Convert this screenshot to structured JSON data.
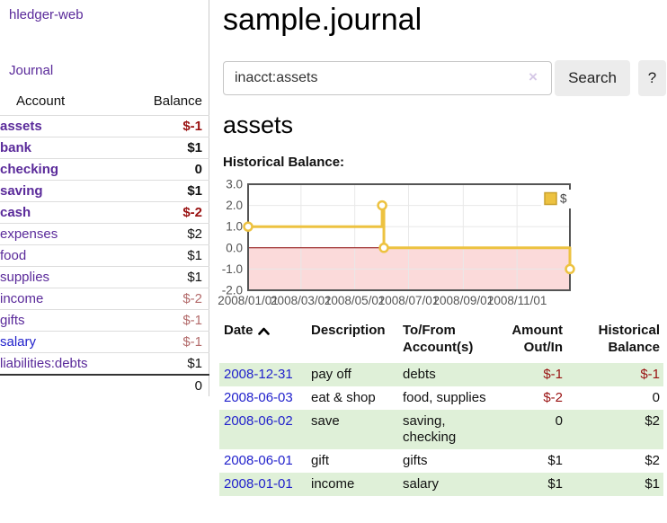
{
  "colors": {
    "purple": "#5a2a9a",
    "blue": "#2222cc",
    "neg_strong": "#991111",
    "neg_soft": "#b36b6b",
    "stripe_green": "#dff0d8",
    "row_line": "#dddddd",
    "divider": "#cccccc",
    "input_border": "#c6c6c6",
    "button_bg": "#ececec",
    "clear_x": "#d5c8e6"
  },
  "app": {
    "brand": "hledger-web",
    "nav_journal": "Journal"
  },
  "sidebar": {
    "header": {
      "account": "Account",
      "balance": "Balance"
    },
    "rows": [
      {
        "name": "assets",
        "depth": 1,
        "bold": true,
        "link": "purple",
        "balance": "$-1",
        "balance_style": "neg-strong"
      },
      {
        "name": "bank",
        "depth": 2,
        "bold": true,
        "link": "purple",
        "balance": "$1",
        "balance_style": "pos"
      },
      {
        "name": "checking",
        "depth": 3,
        "bold": true,
        "link": "purple",
        "balance": "0",
        "balance_style": "pos"
      },
      {
        "name": "saving",
        "depth": 3,
        "bold": true,
        "link": "purple",
        "balance": "$1",
        "balance_style": "pos"
      },
      {
        "name": "cash",
        "depth": 2,
        "bold": true,
        "link": "purple",
        "balance": "$-2",
        "balance_style": "neg-strong"
      },
      {
        "name": "expenses",
        "depth": 1,
        "bold": false,
        "link": "purple",
        "balance": "$2",
        "balance_style": "pos"
      },
      {
        "name": "food",
        "depth": 2,
        "bold": false,
        "link": "purple",
        "balance": "$1",
        "balance_style": "pos"
      },
      {
        "name": "supplies",
        "depth": 2,
        "bold": false,
        "link": "purple",
        "balance": "$1",
        "balance_style": "pos"
      },
      {
        "name": "income",
        "depth": 1,
        "bold": false,
        "link": "purple",
        "balance": "$-2",
        "balance_style": "neg-soft"
      },
      {
        "name": "gifts",
        "depth": 2,
        "bold": false,
        "link": "purple",
        "balance": "$-1",
        "balance_style": "neg-soft"
      },
      {
        "name": "salary",
        "depth": 2,
        "bold": false,
        "link": "blue",
        "balance": "$-1",
        "balance_style": "neg-soft"
      },
      {
        "name": "liabilities:debts",
        "depth": 1,
        "bold": false,
        "link": "purple",
        "balance": "$1",
        "balance_style": "pos"
      }
    ],
    "total": "0"
  },
  "header": {
    "title": "sample.journal"
  },
  "search": {
    "value": "inacct:assets",
    "clear_icon": "×",
    "button": "Search",
    "help_button": "?"
  },
  "account_page": {
    "heading": "assets",
    "chart_label": "Historical Balance:"
  },
  "chart_data": {
    "type": "line",
    "style": "step",
    "title": "Historical Balance:",
    "series": [
      {
        "name": "$",
        "color": "#edc240",
        "points": [
          [
            "2008-01-01",
            1
          ],
          [
            "2008-06-01",
            2
          ],
          [
            "2008-06-03",
            0
          ],
          [
            "2008-12-31",
            -1
          ]
        ]
      }
    ],
    "xlim": [
      "2008-01-01",
      "2008-12-31"
    ],
    "ylim": [
      -2,
      3
    ],
    "yticks": [
      {
        "value": 3,
        "label": "3.0"
      },
      {
        "value": 2,
        "label": "2.0"
      },
      {
        "value": 1,
        "label": "1.0"
      },
      {
        "value": 0,
        "label": "0.0"
      },
      {
        "value": -1,
        "label": "-1.0"
      },
      {
        "value": -2,
        "label": "-2.0"
      }
    ],
    "xticks": [
      {
        "date": "2008-01-01",
        "label": "2008/01/01"
      },
      {
        "date": "2008-03-01",
        "label": "2008/03/01"
      },
      {
        "date": "2008-05-01",
        "label": "2008/05/01"
      },
      {
        "date": "2008-07-01",
        "label": "2008/07/01"
      },
      {
        "date": "2008-09-01",
        "label": "2008/09/01"
      },
      {
        "date": "2008-11-01",
        "label": "2008/11/01"
      }
    ],
    "legend": {
      "label": "$",
      "position": "top-right"
    },
    "grid": true,
    "grid_color": "#e8e8e8",
    "border_color": "#545454",
    "tick_color": "#545454",
    "zero_line_color": "#8b0000",
    "negative_region_fill": "#fbdada",
    "legend_square_border": "#c9a12e"
  },
  "register": {
    "columns": [
      {
        "label": "Date",
        "sorted": "asc"
      },
      {
        "label": "Description"
      },
      {
        "label": "To/From Account(s)"
      },
      {
        "label": "Amount Out/In",
        "align": "right"
      },
      {
        "label": "Historical Balance",
        "align": "right"
      }
    ],
    "rows": [
      {
        "date": "2008-12-31",
        "description": "pay off",
        "accounts": "debts",
        "amount": "$-1",
        "amount_negative": true,
        "balance": "$-1",
        "balance_negative": true
      },
      {
        "date": "2008-06-03",
        "description": "eat & shop",
        "accounts": "food, supplies",
        "amount": "$-2",
        "amount_negative": true,
        "balance": "0",
        "balance_negative": false
      },
      {
        "date": "2008-06-02",
        "description": "save",
        "accounts": "saving, checking",
        "amount": "0",
        "amount_negative": false,
        "balance": "$2",
        "balance_negative": false
      },
      {
        "date": "2008-06-01",
        "description": "gift",
        "accounts": "gifts",
        "amount": "$1",
        "amount_negative": false,
        "balance": "$2",
        "balance_negative": false
      },
      {
        "date": "2008-01-01",
        "description": "income",
        "accounts": "salary",
        "amount": "$1",
        "amount_negative": false,
        "balance": "$1",
        "balance_negative": false
      }
    ]
  }
}
